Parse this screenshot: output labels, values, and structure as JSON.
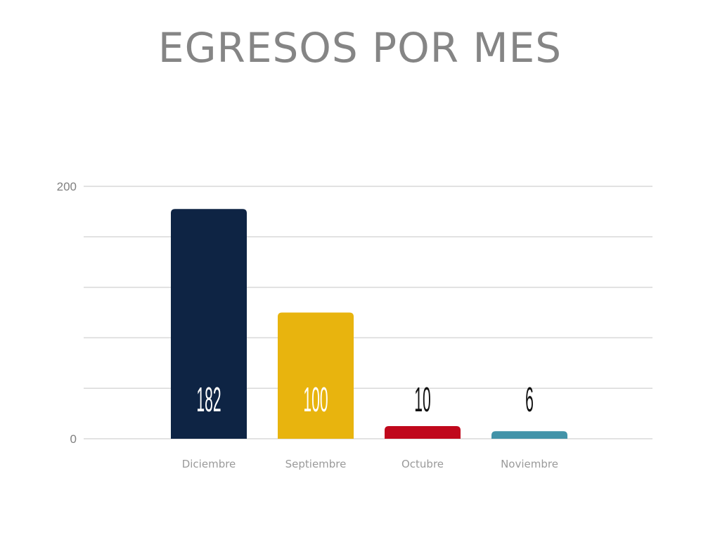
{
  "chart_data": {
    "type": "bar",
    "title": "EGRESOS POR MES",
    "categories": [
      "Diciembre",
      "Septiembre",
      "Octubre",
      "Noviembre"
    ],
    "values": [
      182,
      100,
      10,
      6
    ],
    "colors": [
      "#0e2444",
      "#e8b40e",
      "#c0081c",
      "#4293a8"
    ],
    "ylim": [
      0,
      200
    ],
    "y_tick_labels": [
      "200",
      "0"
    ],
    "gridlines": [
      0,
      40,
      80,
      120,
      160,
      200
    ],
    "grid": true,
    "legend": false,
    "data_labels": true
  }
}
